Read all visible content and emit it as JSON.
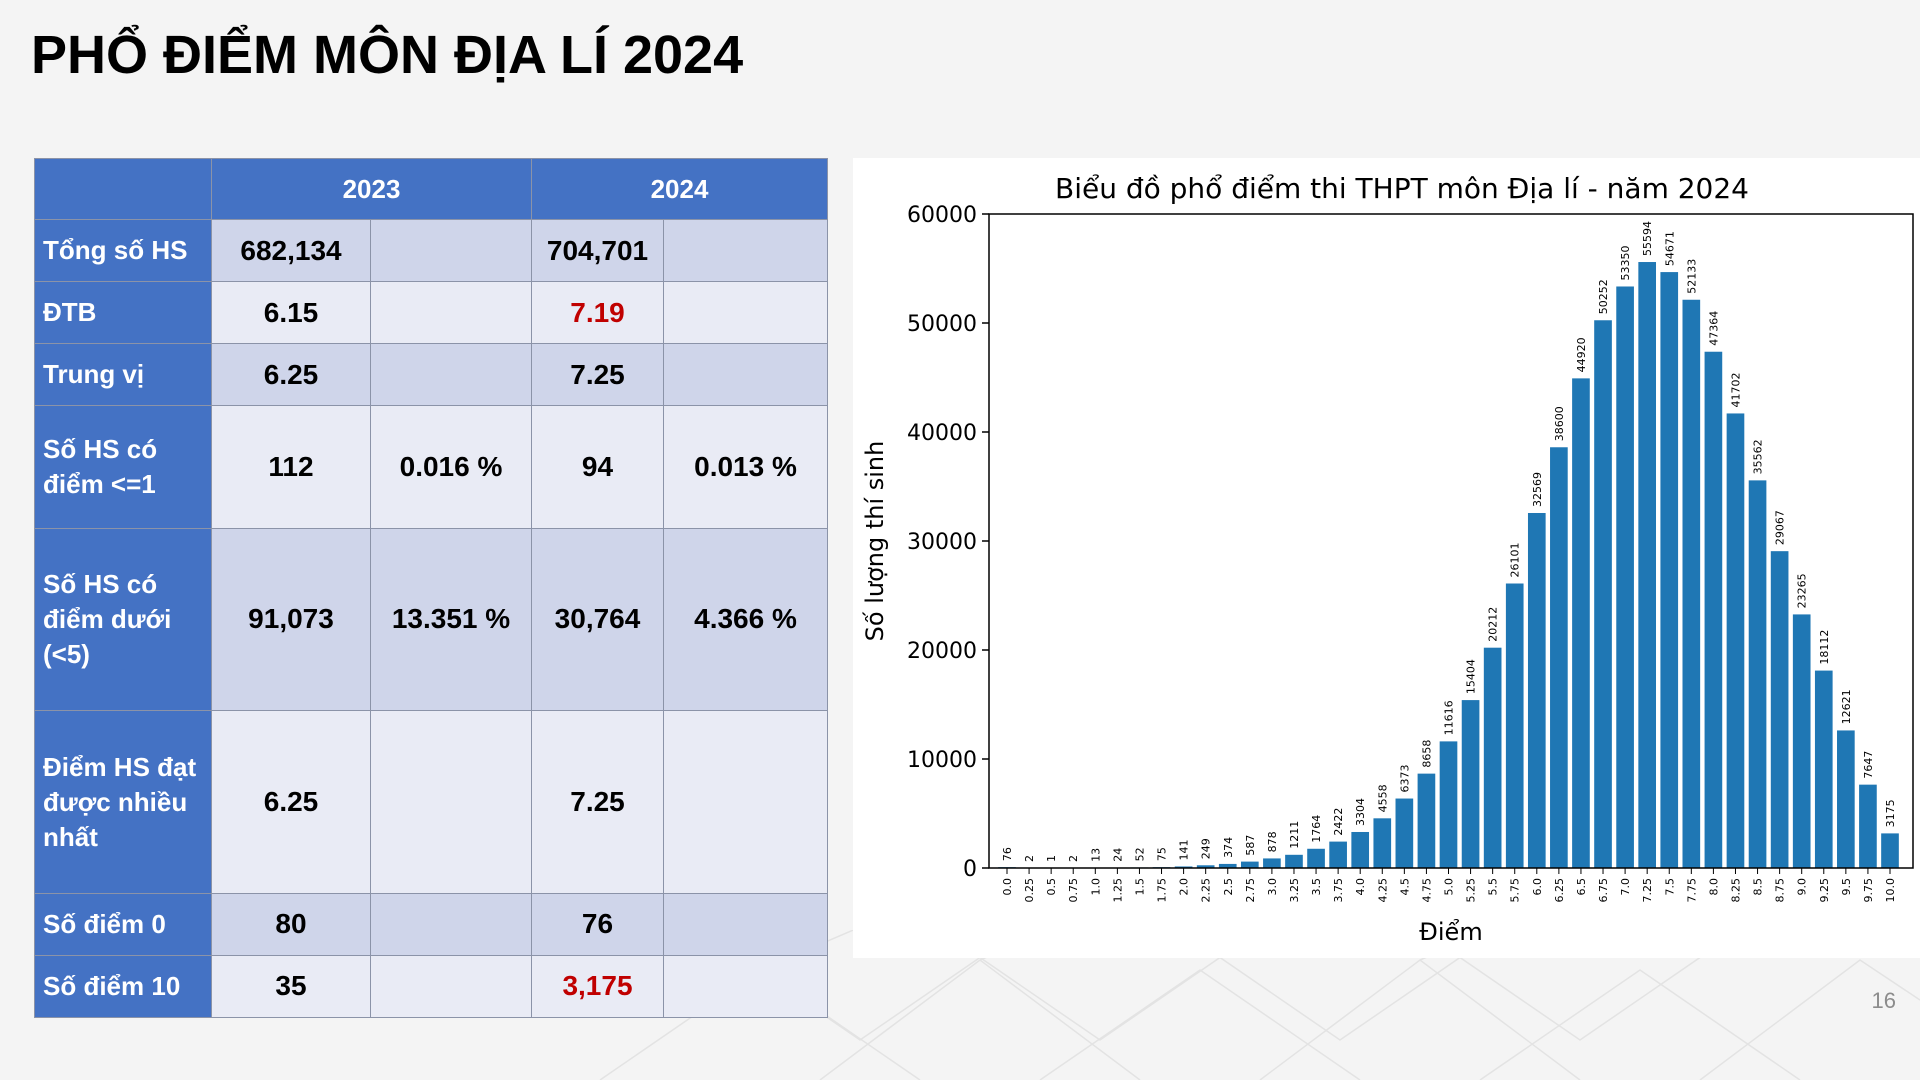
{
  "slide": {
    "title": "PHỔ ĐIỂM MÔN ĐỊA LÍ 2024",
    "page_number": "16"
  },
  "table": {
    "header": [
      "",
      "2023",
      "2024"
    ],
    "rows": [
      {
        "label": "Tổng số HS",
        "v2023": "682,134",
        "p2023": "",
        "v2024": "704,701",
        "p2024": ""
      },
      {
        "label": "ĐTB",
        "v2023": "6.15",
        "p2023": "",
        "v2024": "7.19",
        "p2024": ""
      },
      {
        "label": "Trung vị",
        "v2023": "6.25",
        "p2023": "",
        "v2024": "7.25",
        "p2024": ""
      },
      {
        "label": "Số HS có điểm <=1",
        "v2023": "112",
        "p2023": "0.016 %",
        "v2024": "94",
        "p2024": "0.013 %"
      },
      {
        "label": "Số HS có điểm dưới (<5)",
        "v2023": "91,073",
        "p2023": "13.351 %",
        "v2024": "30,764",
        "p2024": "4.366 %"
      },
      {
        "label": "Điểm HS đạt được nhiều nhất",
        "v2023": "6.25",
        "p2023": "",
        "v2024": "7.25",
        "p2024": ""
      },
      {
        "label": "Số điểm 0",
        "v2023": "80",
        "p2023": "",
        "v2024": "76",
        "p2024": ""
      },
      {
        "label": "Số điểm 10",
        "v2023": "35",
        "p2023": "",
        "v2024": "3,175",
        "p2024": ""
      }
    ],
    "highlight_color": "#c00000",
    "header_color": "#4472c4"
  },
  "chart_data": {
    "type": "bar",
    "title": "Biểu đồ phổ điểm thi THPT môn Địa lí - năm 2024",
    "xlabel": "Điểm",
    "ylabel": "Số lượng thí sinh",
    "categories": [
      "0.0",
      "0.25",
      "0.5",
      "0.75",
      "1.0",
      "1.25",
      "1.5",
      "1.75",
      "2.0",
      "2.25",
      "2.5",
      "2.75",
      "3.0",
      "3.25",
      "3.5",
      "3.75",
      "4.0",
      "4.25",
      "4.5",
      "4.75",
      "5.0",
      "5.25",
      "5.5",
      "5.75",
      "6.0",
      "6.25",
      "6.5",
      "6.75",
      "7.0",
      "7.25",
      "7.5",
      "7.75",
      "8.0",
      "8.25",
      "8.5",
      "8.75",
      "9.0",
      "9.25",
      "9.5",
      "9.75",
      "10.0"
    ],
    "values": [
      76,
      2,
      1,
      2,
      13,
      24,
      52,
      75,
      141,
      249,
      374,
      587,
      878,
      1211,
      1764,
      2422,
      3304,
      4558,
      6373,
      8658,
      11616,
      15404,
      20212,
      26101,
      32569,
      38600,
      44920,
      50252,
      53350,
      55594,
      54671,
      52133,
      47364,
      41702,
      35562,
      29067,
      23265,
      18112,
      12621,
      7647,
      3175
    ],
    "ylim": [
      0,
      60000
    ],
    "yticks": [
      0,
      10000,
      20000,
      30000,
      40000,
      50000,
      60000
    ],
    "bar_color": "#1f77b4",
    "grid": false
  }
}
